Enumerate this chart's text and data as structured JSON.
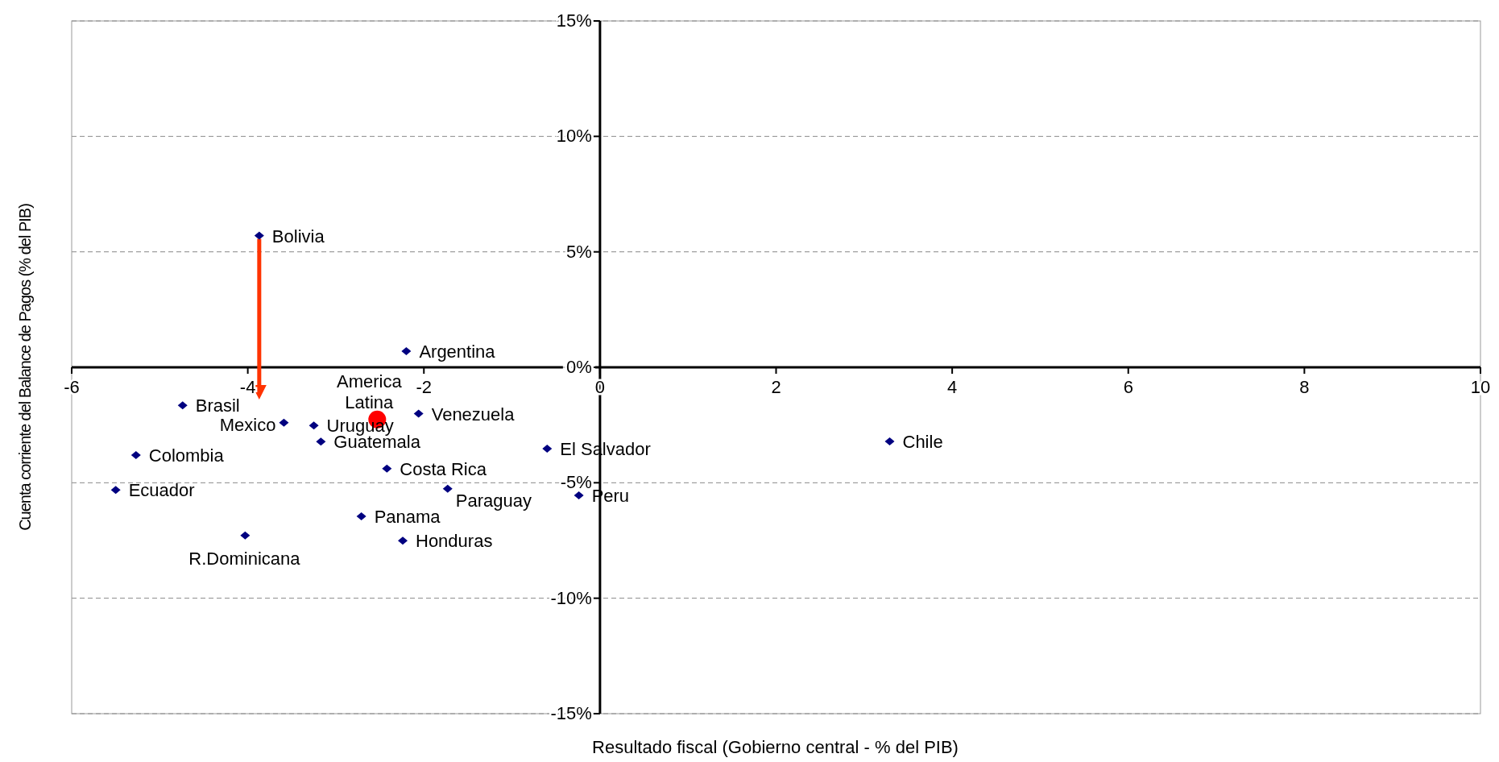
{
  "chart_data": {
    "type": "scatter",
    "xlabel": "Resultado fiscal (Gobierno central - % del PIB)",
    "ylabel": "Cuenta corriente del Balance de Pagos  (% del PIB)",
    "xlim": [
      -6,
      10
    ],
    "xticks": [
      -6,
      -4,
      -2,
      0,
      2,
      4,
      6,
      8,
      10
    ],
    "ylim": [
      -15,
      15
    ],
    "yticks": [
      {
        "value": -15,
        "label": "-15%"
      },
      {
        "value": -10,
        "label": "-10%"
      },
      {
        "value": -5,
        "label": "-5%"
      },
      {
        "value": 0,
        "label": "0%"
      },
      {
        "value": 5,
        "label": "5%"
      },
      {
        "value": 10,
        "label": "10%"
      },
      {
        "value": 15,
        "label": "15%"
      }
    ],
    "grid": "y",
    "marker": "diamond",
    "series": [
      {
        "name": "Bolivia",
        "color": "#000080",
        "x": [
          -3.87
        ],
        "values": [
          5.7
        ]
      },
      {
        "name": "Argentina",
        "color": "#000080",
        "x": [
          -2.2
        ],
        "values": [
          0.7
        ]
      },
      {
        "name": "Brasil",
        "color": "#000080",
        "x": [
          -4.74
        ],
        "values": [
          -1.65
        ]
      },
      {
        "name": "Mexico",
        "color": "#000080",
        "x": [
          -3.59
        ],
        "values": [
          -2.4
        ]
      },
      {
        "name": "Uruguay",
        "color": "#000080",
        "x": [
          -3.25
        ],
        "values": [
          -2.52
        ]
      },
      {
        "name": "Venezuela",
        "color": "#000080",
        "x": [
          -2.06
        ],
        "values": [
          -2.01
        ]
      },
      {
        "name": "Guatemala",
        "color": "#000080",
        "x": [
          -3.17
        ],
        "values": [
          -3.22
        ]
      },
      {
        "name": "Colombia",
        "color": "#000080",
        "x": [
          -5.27
        ],
        "values": [
          -3.8
        ]
      },
      {
        "name": "El Salvador",
        "color": "#000080",
        "x": [
          -0.6
        ],
        "values": [
          -3.52
        ]
      },
      {
        "name": "Chile",
        "color": "#000080",
        "x": [
          3.29
        ],
        "values": [
          -3.21
        ]
      },
      {
        "name": "Costa Rica",
        "color": "#000080",
        "x": [
          -2.42
        ],
        "values": [
          -4.39
        ]
      },
      {
        "name": "Ecuador",
        "color": "#000080",
        "x": [
          -5.5
        ],
        "values": [
          -5.31
        ]
      },
      {
        "name": "Paraguay",
        "color": "#000080",
        "x": [
          -1.73
        ],
        "values": [
          -5.26
        ]
      },
      {
        "name": "Peru",
        "color": "#000080",
        "x": [
          -0.24
        ],
        "values": [
          -5.55
        ]
      },
      {
        "name": "Panama",
        "color": "#000080",
        "x": [
          -2.71
        ],
        "values": [
          -6.45
        ]
      },
      {
        "name": "Honduras",
        "color": "#000080",
        "x": [
          -2.24
        ],
        "values": [
          -7.51
        ]
      },
      {
        "name": "R.Dominicana",
        "color": "#000080",
        "x": [
          -4.03
        ],
        "values": [
          -7.28
        ]
      },
      {
        "name": "America Latina",
        "color": "#ff0000",
        "marker": "circle",
        "x": [
          -2.53
        ],
        "values": [
          -2.26
        ]
      }
    ]
  }
}
